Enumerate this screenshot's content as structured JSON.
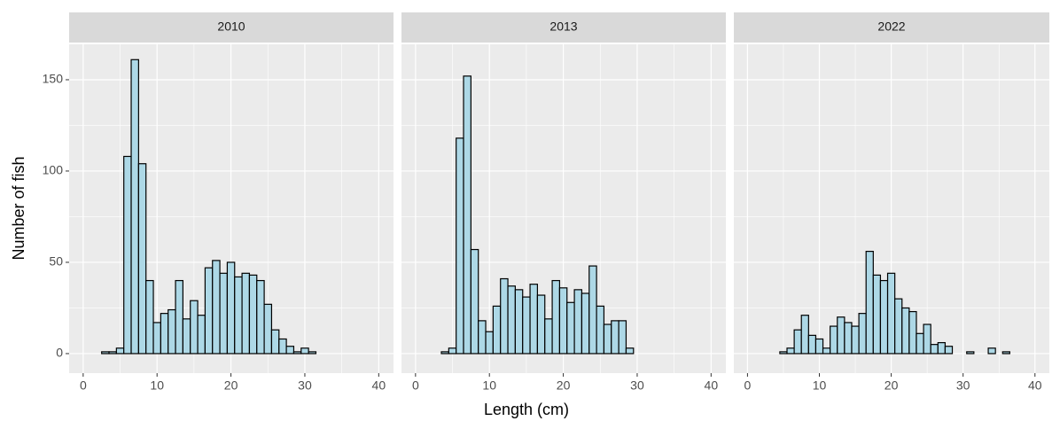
{
  "chart_data": [
    {
      "type": "histogram",
      "title": "2010",
      "y_label": "Number of fish",
      "fill": "#add8e6",
      "edge_color": "#000000",
      "grid": true,
      "bins": [
        2.5,
        3.5,
        4.5,
        5.5,
        6.5,
        7.5,
        8.5,
        9.5,
        10.5,
        11.5,
        12.5,
        13.5,
        14.5,
        15.5,
        16.5,
        17.5,
        18.5,
        19.5,
        20.5,
        21.5,
        22.5,
        23.5,
        24.5,
        25.5,
        26.5,
        27.5,
        28.5,
        29.5,
        30.5,
        31.5,
        32.5,
        33.5,
        34.5,
        35.5,
        36.5
      ],
      "values": [
        1,
        1,
        3,
        108,
        161,
        104,
        40,
        17,
        22,
        24,
        40,
        19,
        29,
        21,
        47,
        51,
        44,
        50,
        42,
        44,
        43,
        40,
        27,
        13,
        8,
        4,
        1,
        3,
        1,
        0,
        0,
        0,
        0,
        0
      ],
      "xlim": [
        -1.9,
        42
      ],
      "xticks": [
        0,
        10,
        20,
        30,
        40
      ],
      "ylim": [
        -10.7,
        169.4
      ],
      "yticks": [
        0,
        50,
        100,
        150
      ]
    },
    {
      "type": "histogram",
      "title": "2013",
      "x_label": "Length (cm)",
      "fill": "#add8e6",
      "edge_color": "#000000",
      "grid": true,
      "bins": [
        2.5,
        3.5,
        4.5,
        5.5,
        6.5,
        7.5,
        8.5,
        9.5,
        10.5,
        11.5,
        12.5,
        13.5,
        14.5,
        15.5,
        16.5,
        17.5,
        18.5,
        19.5,
        20.5,
        21.5,
        22.5,
        23.5,
        24.5,
        25.5,
        26.5,
        27.5,
        28.5,
        29.5,
        30.5,
        31.5,
        32.5,
        33.5,
        34.5,
        35.5,
        36.5
      ],
      "values": [
        0,
        1,
        3,
        118,
        152,
        57,
        18,
        12,
        26,
        41,
        37,
        35,
        31,
        38,
        32,
        19,
        40,
        36,
        28,
        35,
        33,
        48,
        26,
        16,
        18,
        18,
        3,
        0,
        0,
        0,
        0,
        0,
        0,
        0
      ],
      "xlim": [
        -1.9,
        42
      ],
      "xticks": [
        0,
        10,
        20,
        30,
        40
      ],
      "ylim": [
        -10.7,
        169.4
      ],
      "yticks": [
        0,
        50,
        100,
        150
      ]
    },
    {
      "type": "histogram",
      "title": "2022",
      "fill": "#add8e6",
      "edge_color": "#000000",
      "grid": true,
      "bins": [
        2.5,
        3.5,
        4.5,
        5.5,
        6.5,
        7.5,
        8.5,
        9.5,
        10.5,
        11.5,
        12.5,
        13.5,
        14.5,
        15.5,
        16.5,
        17.5,
        18.5,
        19.5,
        20.5,
        21.5,
        22.5,
        23.5,
        24.5,
        25.5,
        26.5,
        27.5,
        28.5,
        29.5,
        30.5,
        31.5,
        32.5,
        33.5,
        34.5,
        35.5,
        36.5
      ],
      "values": [
        0,
        0,
        1,
        3,
        13,
        21,
        10,
        8,
        3,
        15,
        20,
        17,
        15,
        22,
        56,
        43,
        40,
        44,
        30,
        25,
        23,
        11,
        16,
        5,
        6,
        4,
        0,
        0,
        1,
        0,
        0,
        3,
        0,
        1
      ],
      "xlim": [
        -1.9,
        42
      ],
      "xticks": [
        0,
        10,
        20,
        30,
        40
      ],
      "ylim": [
        -10.7,
        169.4
      ],
      "yticks": [
        0,
        50,
        100,
        150
      ]
    }
  ]
}
